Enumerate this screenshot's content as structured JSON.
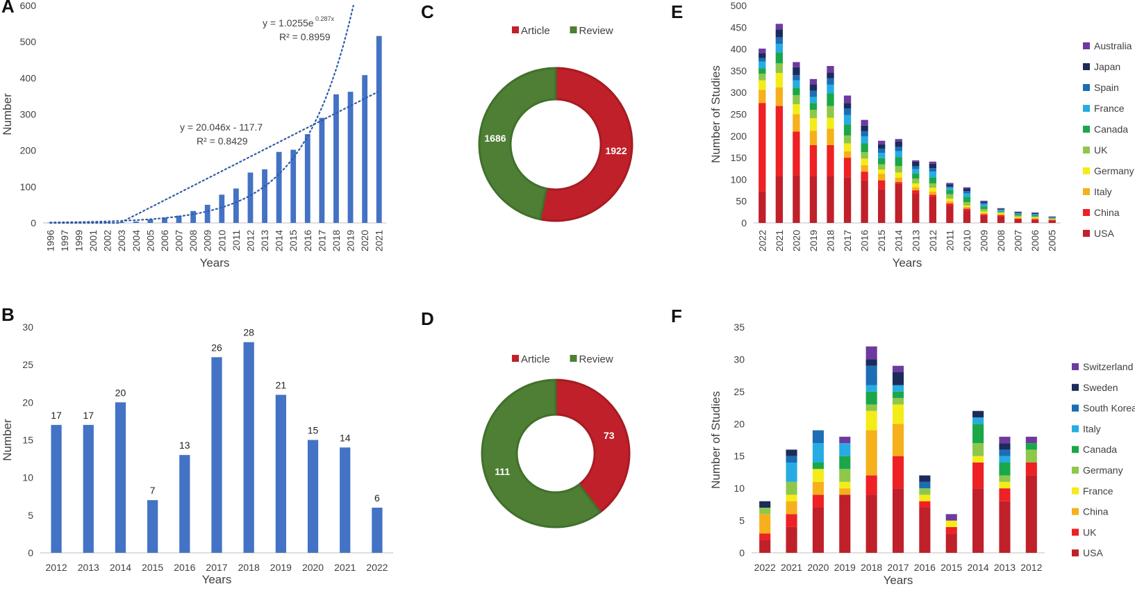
{
  "chart_data": [
    {
      "panel": "A",
      "type": "bar",
      "categories": [
        "1996",
        "1997",
        "1999",
        "2001",
        "2002",
        "2003",
        "2004",
        "2005",
        "2006",
        "2007",
        "2008",
        "2009",
        "2010",
        "2011",
        "2012",
        "2013",
        "2014",
        "2015",
        "2016",
        "2017",
        "2018",
        "2019",
        "2020",
        "2021"
      ],
      "values": [
        1,
        1,
        1,
        1,
        2,
        2,
        4,
        10,
        15,
        20,
        33,
        50,
        78,
        95,
        139,
        148,
        196,
        202,
        245,
        290,
        355,
        362,
        408,
        516
      ],
      "xlabel": "Years",
      "ylabel": "Number",
      "ylim": [
        0,
        600
      ],
      "yticks": [
        0,
        100,
        200,
        300,
        400,
        500,
        600
      ],
      "color": "#4472c4",
      "trendlines": [
        {
          "kind": "exponential",
          "equation": "y = 1.0255e",
          "exponent": "0.287x",
          "r2": "R² = 0.8959",
          "a": 1.0255,
          "b": 0.287
        },
        {
          "kind": "linear",
          "equation": "y = 20.046x - 117.7",
          "r2": "R² = 0.8429",
          "slope": 20.046,
          "intercept": -117.7
        }
      ]
    },
    {
      "panel": "B",
      "type": "bar",
      "categories": [
        "2012",
        "2013",
        "2014",
        "2015",
        "2016",
        "2017",
        "2018",
        "2019",
        "2020",
        "2021",
        "2022"
      ],
      "values": [
        17,
        17,
        20,
        7,
        13,
        26,
        28,
        21,
        15,
        14,
        6
      ],
      "xlabel": "Years",
      "ylabel": "Number",
      "ylim": [
        0,
        30
      ],
      "yticks": [
        0,
        5,
        10,
        15,
        20,
        25,
        30
      ],
      "color": "#4472c4"
    },
    {
      "panel": "C",
      "type": "pie",
      "labels": [
        "Article",
        "Review"
      ],
      "values": [
        1922,
        1686
      ],
      "colors": [
        "#c0202a",
        "#4e7f35"
      ],
      "legend": "top"
    },
    {
      "panel": "D",
      "type": "pie",
      "labels": [
        "Article",
        "Review"
      ],
      "values": [
        73,
        111
      ],
      "colors": [
        "#c0202a",
        "#4e7f35"
      ],
      "legend": "top"
    },
    {
      "panel": "E",
      "type": "bar",
      "stacked": true,
      "categories": [
        "2022",
        "2021",
        "2020",
        "2019",
        "2018",
        "2017",
        "2016",
        "2015",
        "2014",
        "2013",
        "2012",
        "2011",
        "2010",
        "2009",
        "2008",
        "2007",
        "2006",
        "2005"
      ],
      "xlabel": "Years",
      "ylabel": "Number of Studies",
      "ylim": [
        0,
        500
      ],
      "yticks": [
        0,
        50,
        100,
        150,
        200,
        250,
        300,
        350,
        400,
        450,
        500
      ],
      "legend": "right",
      "series": [
        {
          "name": "USA",
          "color": "#c0202a",
          "values": [
            73,
            107,
            110,
            107,
            107,
            105,
            98,
            78,
            90,
            68,
            60,
            40,
            30,
            18,
            15,
            8,
            7,
            6
          ]
        },
        {
          "name": "China",
          "color": "#ee2124",
          "values": [
            203,
            162,
            100,
            72,
            72,
            45,
            20,
            20,
            4,
            7,
            5,
            5,
            3,
            2,
            3,
            2,
            2,
            1
          ]
        },
        {
          "name": "Italy",
          "color": "#f6b01b",
          "values": [
            30,
            43,
            40,
            33,
            38,
            15,
            15,
            15,
            10,
            7,
            7,
            5,
            4,
            3,
            2,
            2,
            2,
            1
          ]
        },
        {
          "name": "Germany",
          "color": "#f4ec17",
          "values": [
            22,
            33,
            23,
            29,
            25,
            18,
            15,
            10,
            12,
            9,
            9,
            6,
            3,
            3,
            3,
            2,
            2,
            1
          ]
        },
        {
          "name": "UK",
          "color": "#8fc74b",
          "values": [
            15,
            22,
            21,
            19,
            27,
            18,
            15,
            12,
            15,
            11,
            10,
            10,
            8,
            6,
            2,
            3,
            2,
            1
          ]
        },
        {
          "name": "Canada",
          "color": "#1aa74a",
          "values": [
            13,
            25,
            17,
            16,
            29,
            25,
            20,
            14,
            20,
            12,
            14,
            10,
            12,
            6,
            2,
            3,
            3,
            1
          ]
        },
        {
          "name": "France",
          "color": "#26ace2",
          "values": [
            15,
            20,
            17,
            14,
            20,
            22,
            16,
            12,
            14,
            10,
            13,
            5,
            8,
            5,
            3,
            2,
            2,
            1
          ]
        },
        {
          "name": "Spain",
          "color": "#1b6db5",
          "values": [
            8,
            15,
            12,
            14,
            15,
            15,
            12,
            10,
            10,
            7,
            8,
            3,
            5,
            3,
            1,
            1,
            1,
            1
          ]
        },
        {
          "name": "Japan",
          "color": "#1c2b5b",
          "values": [
            12,
            18,
            18,
            15,
            13,
            13,
            13,
            10,
            12,
            10,
            10,
            5,
            6,
            3,
            2,
            2,
            2,
            1
          ]
        },
        {
          "name": "Australia",
          "color": "#6e3a9f",
          "values": [
            10,
            13,
            12,
            12,
            15,
            17,
            13,
            8,
            6,
            3,
            5,
            3,
            3,
            2,
            1,
            1,
            1,
            1
          ]
        }
      ]
    },
    {
      "panel": "F",
      "type": "bar",
      "stacked": true,
      "categories": [
        "2022",
        "2021",
        "2020",
        "2019",
        "2018",
        "2017",
        "2016",
        "2015",
        "2014",
        "2013",
        "2012"
      ],
      "xlabel": "Years",
      "ylabel": "Number of Studies",
      "ylim": [
        0,
        35
      ],
      "yticks": [
        0,
        5,
        10,
        15,
        20,
        25,
        30,
        35
      ],
      "legend": "right",
      "series": [
        {
          "name": "USA",
          "color": "#c0202a",
          "values": [
            2,
            4,
            7,
            9,
            9,
            10,
            7,
            3,
            10,
            8,
            12
          ]
        },
        {
          "name": "UK",
          "color": "#ee2124",
          "values": [
            1,
            2,
            2,
            0,
            3,
            5,
            1,
            1,
            4,
            2,
            2
          ]
        },
        {
          "name": "China",
          "color": "#f6b01b",
          "values": [
            3,
            2,
            2,
            1,
            7,
            5,
            0,
            0,
            0,
            0,
            0
          ]
        },
        {
          "name": "France",
          "color": "#f4ec17",
          "values": [
            0,
            1,
            2,
            1,
            3,
            3,
            1,
            1,
            1,
            1,
            0
          ]
        },
        {
          "name": "Germany",
          "color": "#8fc74b",
          "values": [
            1,
            2,
            0,
            2,
            1,
            1,
            1,
            0,
            2,
            1,
            2
          ]
        },
        {
          "name": "Canada",
          "color": "#1aa74a",
          "values": [
            0,
            0,
            1,
            2,
            2,
            1,
            0,
            0,
            3,
            2,
            1
          ]
        },
        {
          "name": "Italy",
          "color": "#26ace2",
          "values": [
            0,
            3,
            3,
            2,
            1,
            1,
            0,
            0,
            1,
            1,
            0
          ]
        },
        {
          "name": "South Korea",
          "color": "#1b6db5",
          "values": [
            0,
            1,
            2,
            0,
            3,
            0,
            1,
            0,
            0,
            1,
            0
          ]
        },
        {
          "name": "Sweden",
          "color": "#1c2b5b",
          "values": [
            1,
            1,
            0,
            0,
            1,
            2,
            1,
            0,
            1,
            1,
            0
          ]
        },
        {
          "name": "Switzerland",
          "color": "#6e3a9f",
          "values": [
            0,
            0,
            0,
            1,
            2,
            1,
            0,
            1,
            0,
            1,
            1
          ]
        }
      ]
    }
  ]
}
